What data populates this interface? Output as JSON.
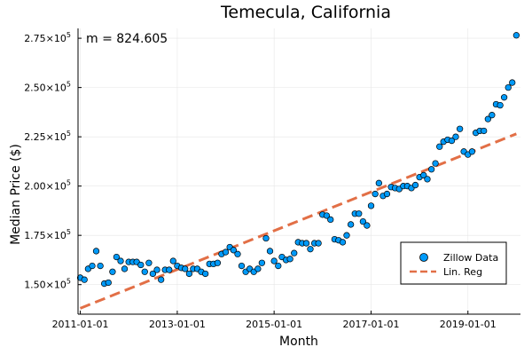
{
  "chart_data": {
    "type": "scatter",
    "title": "Temecula, California",
    "xlabel": "Month",
    "ylabel": "Median Price ($)",
    "xlim": [
      "2010-12-15",
      "2020-02-01"
    ],
    "ylim": [
      135000,
      280000
    ],
    "x_ticks": [
      {
        "date": "2011-01-01",
        "label": "2011-01-01"
      },
      {
        "date": "2013-01-01",
        "label": "2013-01-01"
      },
      {
        "date": "2015-01-01",
        "label": "2015-01-01"
      },
      {
        "date": "2017-01-01",
        "label": "2017-01-01"
      },
      {
        "date": "2019-01-01",
        "label": "2019-01-01"
      }
    ],
    "y_ticks": [
      {
        "value": 150000,
        "mantissa": "1.50",
        "base": "×10",
        "exp": "5"
      },
      {
        "value": 175000,
        "mantissa": "1.75",
        "base": "×10",
        "exp": "5"
      },
      {
        "value": 200000,
        "mantissa": "2.00",
        "base": "×10",
        "exp": "5"
      },
      {
        "value": 225000,
        "mantissa": "2.25",
        "base": "×10",
        "exp": "5"
      },
      {
        "value": 250000,
        "mantissa": "2.50",
        "base": "×10",
        "exp": "5"
      },
      {
        "value": 275000,
        "mantissa": "2.75",
        "base": "×10",
        "exp": "5"
      }
    ],
    "grid": true,
    "annotation": "m = 824.605",
    "legend_position": "bottom-right",
    "series": [
      {
        "name": "Zillow Data",
        "kind": "scatter",
        "color": "#009af9",
        "stroke": "#000000",
        "points": [
          [
            "2011-01-01",
            153500
          ],
          [
            "2011-02-01",
            152500
          ],
          [
            "2011-03-01",
            158000
          ],
          [
            "2011-04-01",
            159500
          ],
          [
            "2011-05-01",
            167000
          ],
          [
            "2011-06-01",
            159500
          ],
          [
            "2011-07-01",
            150500
          ],
          [
            "2011-08-01",
            151000
          ],
          [
            "2011-09-01",
            156500
          ],
          [
            "2011-10-01",
            164000
          ],
          [
            "2011-11-01",
            162000
          ],
          [
            "2011-12-01",
            158000
          ],
          [
            "2012-01-01",
            161500
          ],
          [
            "2012-02-01",
            161500
          ],
          [
            "2012-03-01",
            161500
          ],
          [
            "2012-04-01",
            160000
          ],
          [
            "2012-05-01",
            156500
          ],
          [
            "2012-06-01",
            161000
          ],
          [
            "2012-07-01",
            155500
          ],
          [
            "2012-08-01",
            157500
          ],
          [
            "2012-09-01",
            152500
          ],
          [
            "2012-10-01",
            157500
          ],
          [
            "2012-11-01",
            157500
          ],
          [
            "2012-12-01",
            162000
          ],
          [
            "2013-01-01",
            159500
          ],
          [
            "2013-02-01",
            158500
          ],
          [
            "2013-03-01",
            158000
          ],
          [
            "2013-04-01",
            155500
          ],
          [
            "2013-05-01",
            158000
          ],
          [
            "2013-06-01",
            158000
          ],
          [
            "2013-07-01",
            156500
          ],
          [
            "2013-08-01",
            155500
          ],
          [
            "2013-09-01",
            160500
          ],
          [
            "2013-10-01",
            160500
          ],
          [
            "2013-11-01",
            161000
          ],
          [
            "2013-12-01",
            165500
          ],
          [
            "2014-01-01",
            166500
          ],
          [
            "2014-02-01",
            169000
          ],
          [
            "2014-03-01",
            167500
          ],
          [
            "2014-04-01",
            165500
          ],
          [
            "2014-05-01",
            159500
          ],
          [
            "2014-06-01",
            156500
          ],
          [
            "2014-07-01",
            158000
          ],
          [
            "2014-08-01",
            156500
          ],
          [
            "2014-09-01",
            158000
          ],
          [
            "2014-10-01",
            161000
          ],
          [
            "2014-11-01",
            173500
          ],
          [
            "2014-12-01",
            167000
          ],
          [
            "2015-01-01",
            162000
          ],
          [
            "2015-02-01",
            159500
          ],
          [
            "2015-03-01",
            164000
          ],
          [
            "2015-04-01",
            162500
          ],
          [
            "2015-05-01",
            163000
          ],
          [
            "2015-06-01",
            166000
          ],
          [
            "2015-07-01",
            171500
          ],
          [
            "2015-08-01",
            171000
          ],
          [
            "2015-09-01",
            171000
          ],
          [
            "2015-10-01",
            168000
          ],
          [
            "2015-11-01",
            171000
          ],
          [
            "2015-12-01",
            171000
          ],
          [
            "2016-01-01",
            185500
          ],
          [
            "2016-02-01",
            185000
          ],
          [
            "2016-03-01",
            183000
          ],
          [
            "2016-04-01",
            173000
          ],
          [
            "2016-05-01",
            172500
          ],
          [
            "2016-06-01",
            171500
          ],
          [
            "2016-07-01",
            175000
          ],
          [
            "2016-08-01",
            180500
          ],
          [
            "2016-09-01",
            186000
          ],
          [
            "2016-10-01",
            186000
          ],
          [
            "2016-11-01",
            182000
          ],
          [
            "2016-12-01",
            180000
          ],
          [
            "2017-01-01",
            190000
          ],
          [
            "2017-02-01",
            196000
          ],
          [
            "2017-03-01",
            201500
          ],
          [
            "2017-04-01",
            195000
          ],
          [
            "2017-05-01",
            196000
          ],
          [
            "2017-06-01",
            199500
          ],
          [
            "2017-07-01",
            199000
          ],
          [
            "2017-08-01",
            198500
          ],
          [
            "2017-09-01",
            200000
          ],
          [
            "2017-10-01",
            200000
          ],
          [
            "2017-11-01",
            199000
          ],
          [
            "2017-12-01",
            200500
          ],
          [
            "2018-01-01",
            204500
          ],
          [
            "2018-02-01",
            205500
          ],
          [
            "2018-03-01",
            203500
          ],
          [
            "2018-04-01",
            208500
          ],
          [
            "2018-05-01",
            211500
          ],
          [
            "2018-06-01",
            220000
          ],
          [
            "2018-07-01",
            222500
          ],
          [
            "2018-08-01",
            223500
          ],
          [
            "2018-09-01",
            223000
          ],
          [
            "2018-10-01",
            225000
          ],
          [
            "2018-11-01",
            229000
          ],
          [
            "2018-12-01",
            217500
          ],
          [
            "2019-01-01",
            216000
          ],
          [
            "2019-02-01",
            217500
          ],
          [
            "2019-03-01",
            227000
          ],
          [
            "2019-04-01",
            228000
          ],
          [
            "2019-05-01",
            228000
          ],
          [
            "2019-06-01",
            234000
          ],
          [
            "2019-07-01",
            236000
          ],
          [
            "2019-08-01",
            241500
          ],
          [
            "2019-09-01",
            241000
          ],
          [
            "2019-10-01",
            245000
          ],
          [
            "2019-11-01",
            250000
          ],
          [
            "2019-12-01",
            252500
          ],
          [
            "2020-01-01",
            276500
          ]
        ]
      },
      {
        "name": "Lin. Reg",
        "kind": "line",
        "color": "#e26f46",
        "dash": "dashed",
        "points": [
          [
            "2011-01-01",
            138000
          ],
          [
            "2020-01-01",
            226500
          ]
        ]
      }
    ]
  }
}
